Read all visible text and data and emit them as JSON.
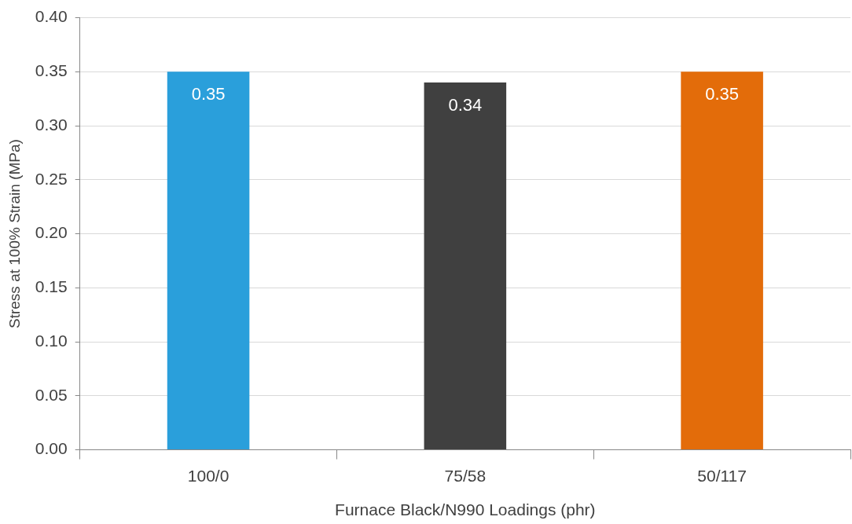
{
  "chart_data": {
    "type": "bar",
    "xlabel": "Furnace Black/N990 Loadings (phr)",
    "ylabel": "Stress at 100% Strain (MPa)",
    "categories": [
      "100/0",
      "75/58",
      "50/117"
    ],
    "values": [
      0.35,
      0.34,
      0.35
    ],
    "colors": [
      "#2a9fdb",
      "#404040",
      "#e36c0a"
    ],
    "ylim": [
      0,
      0.4
    ],
    "yticks": [
      {
        "value": 0,
        "label": "0.00"
      },
      {
        "value": 0.05,
        "label": "0.05"
      },
      {
        "value": 0.1,
        "label": "0.10"
      },
      {
        "value": 0.15,
        "label": "0.15"
      },
      {
        "value": 0.2,
        "label": "0.20"
      },
      {
        "value": 0.25,
        "label": "0.25"
      },
      {
        "value": 0.3,
        "label": "0.30"
      },
      {
        "value": 0.35,
        "label": "0.35"
      },
      {
        "value": 0.4,
        "label": "0.40"
      }
    ],
    "grid": "y",
    "data_labels": true,
    "legend": false
  }
}
